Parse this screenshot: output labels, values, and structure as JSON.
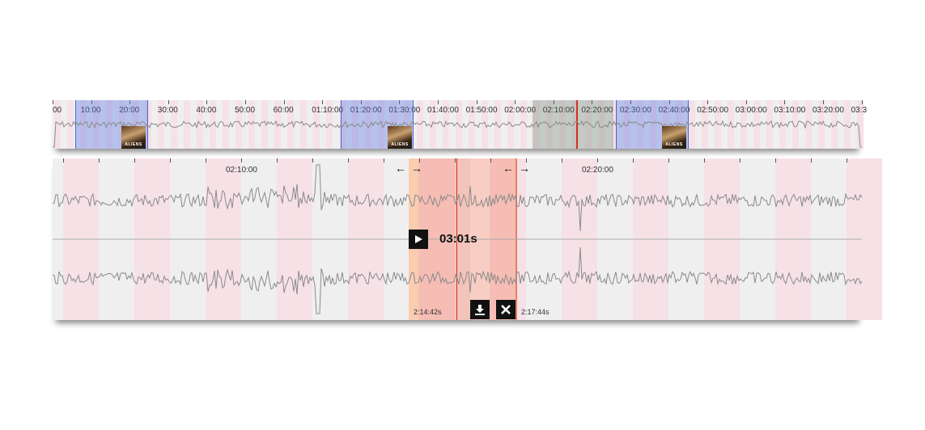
{
  "overview": {
    "ticks": [
      "00",
      "10:00",
      "20:00",
      "30:00",
      "40:00",
      "50:00",
      "60:00",
      "01:10:00",
      "01:20:00",
      "01:30:00",
      "01:40:00",
      "01:50:00",
      "02:00:00",
      "02:10:00",
      "02:20:00",
      "02:30:00",
      "02:40:00",
      "02:50:00",
      "03:00:00",
      "03:10:00",
      "03:20:00",
      "03:3"
    ],
    "thumbnail_label": "ALIENS"
  },
  "detail": {
    "ticks": [
      "02:10:00",
      "02:20:00"
    ],
    "selection": {
      "duration": "03:01s",
      "start": "2:14:42s",
      "end": "2:17:44s"
    }
  },
  "colors": {
    "stripe": "#f6e1e7",
    "selection": "#f5a89a",
    "playhead": "#d43020",
    "waveform": "#8a8a8a"
  },
  "icons": [
    "play-icon",
    "download-icon",
    "close-icon",
    "arrow-left-icon",
    "arrow-right-icon"
  ]
}
